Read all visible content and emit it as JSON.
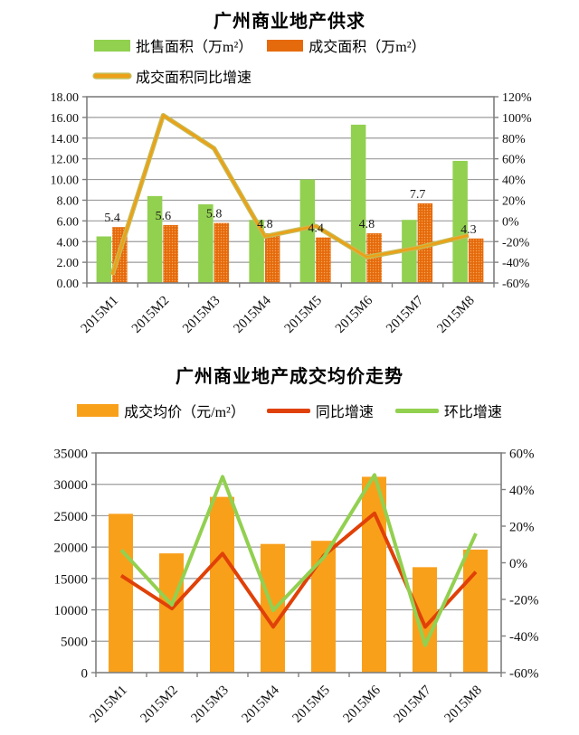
{
  "page": {
    "background": "#ffffff"
  },
  "chart_data": [
    {
      "type": "bar+line",
      "title": "广州商业地产供求",
      "categories": [
        "2015M1",
        "2015M2",
        "2015M3",
        "2015M4",
        "2015M5",
        "2015M6",
        "2015M7",
        "2015M8"
      ],
      "series": [
        {
          "name": "批售面积（万m²）",
          "kind": "bar",
          "axis": "left",
          "color": "#92D050",
          "values": [
            4.5,
            8.4,
            7.6,
            6.1,
            10.0,
            15.3,
            6.1,
            11.8
          ]
        },
        {
          "name": "成交面积（万m²）",
          "kind": "bar",
          "axis": "left",
          "color": "#E56A0B",
          "pattern": "dots",
          "pattern_dot_color": "#F7A65A",
          "values": [
            5.4,
            5.6,
            5.8,
            4.8,
            4.4,
            4.8,
            7.7,
            4.3
          ],
          "data_labels": [
            "5.4",
            "5.6",
            "5.8",
            "4.8",
            "4.4",
            "4.8",
            "7.7",
            "4.3"
          ]
        },
        {
          "name": "成交面积同比增速",
          "kind": "line",
          "axis": "right",
          "color": "#EDA017",
          "halo": "#C5BC55",
          "values": [
            -52,
            102,
            70,
            -15,
            -5,
            -35,
            -26,
            -14
          ]
        }
      ],
      "left_axis": {
        "min": 0,
        "max": 18,
        "tick_labels": [
          "18.00",
          "16.00",
          "14.00",
          "12.00",
          "10.00",
          "8.00",
          "6.00",
          "4.00",
          "2.00",
          "0.00"
        ]
      },
      "right_axis": {
        "min": -60,
        "max": 120,
        "tick_labels": [
          "120%",
          "100%",
          "80%",
          "60%",
          "40%",
          "20%",
          "0%",
          "-20%",
          "-40%",
          "-60%"
        ]
      },
      "legend_position": "top",
      "grid": true
    },
    {
      "type": "bar+line",
      "title": "广州商业地产成交均价走势",
      "categories": [
        "2015M1",
        "2015M2",
        "2015M3",
        "2015M4",
        "2015M5",
        "2015M6",
        "2015M7",
        "2015M8"
      ],
      "series": [
        {
          "name": "成交均价（元/m²）",
          "kind": "bar",
          "axis": "left",
          "color": "#F9A01B",
          "values": [
            25300,
            19000,
            28000,
            20500,
            21000,
            31200,
            16800,
            19600
          ]
        },
        {
          "name": "同比增速",
          "kind": "line",
          "axis": "right",
          "color": "#E04108",
          "values": [
            -7,
            -25,
            5,
            -35,
            4,
            27,
            -35,
            -5
          ]
        },
        {
          "name": "环比增速",
          "kind": "line",
          "axis": "right",
          "color": "#92D050",
          "values": [
            7,
            -23,
            47,
            -26,
            3,
            48,
            -45,
            16
          ]
        }
      ],
      "left_axis": {
        "min": 0,
        "max": 35000,
        "tick_labels": [
          "35000",
          "30000",
          "25000",
          "20000",
          "15000",
          "10000",
          "5000",
          "0"
        ]
      },
      "right_axis": {
        "min": -60,
        "max": 60,
        "tick_labels": [
          "60%",
          "40%",
          "20%",
          "0%",
          "-20%",
          "-40%",
          "-60%"
        ]
      },
      "legend_position": "top",
      "grid": true
    }
  ]
}
